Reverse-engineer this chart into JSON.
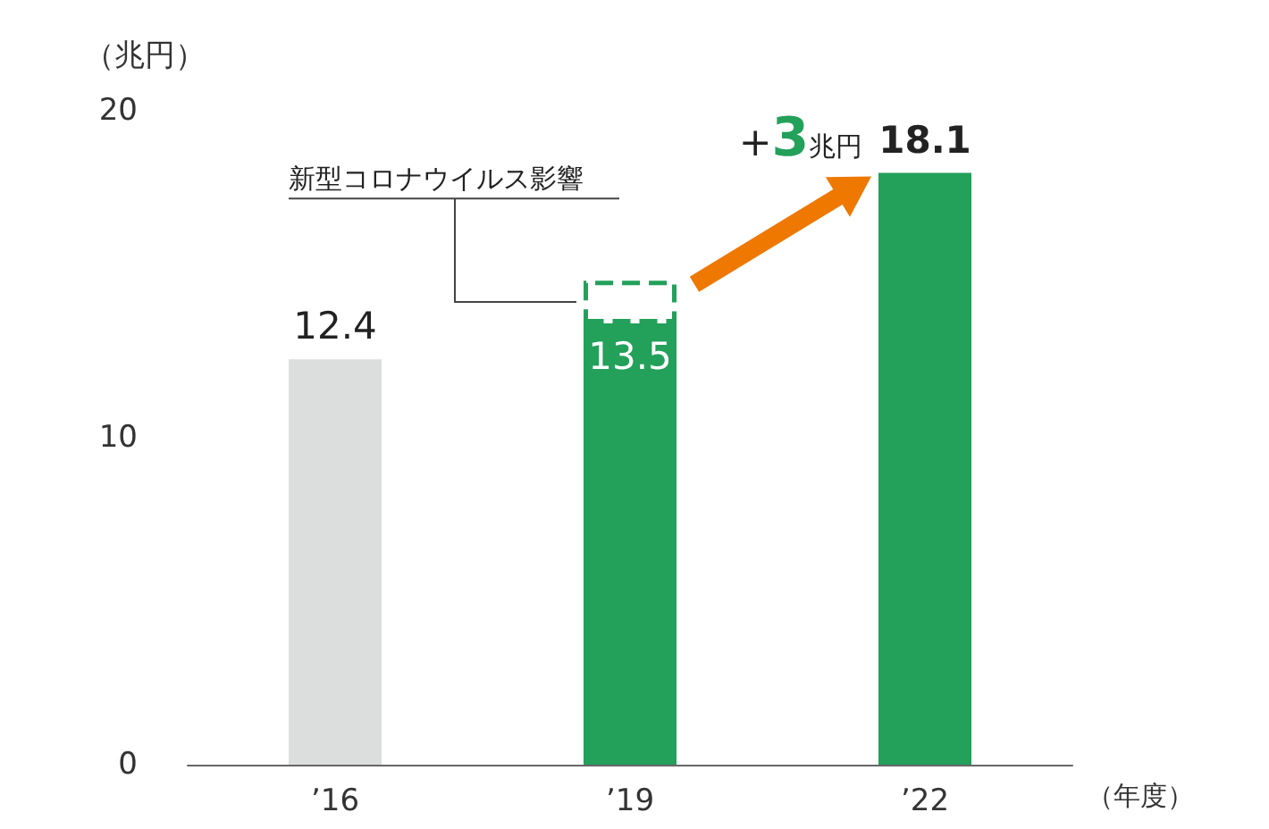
{
  "chart_data": {
    "type": "bar",
    "stacked": true,
    "categories": [
      "’16",
      "’19",
      "’22"
    ],
    "series": [
      {
        "colors": [
          "#dcdddd",
          "#23a05a",
          "#23a05a"
        ],
        "values": [
          12.4,
          13.5,
          18.1
        ],
        "value_labels": [
          "12.4",
          "13.5",
          "18.1"
        ]
      },
      {
        "color": "#23a05a",
        "line_style": "dashed",
        "values": [
          null,
          1.3,
          null
        ]
      }
    ],
    "ylim": [
      0,
      20
    ],
    "yticks": [
      0,
      10,
      20
    ],
    "ylabel": "（兆円）",
    "xlabel": "（年度）",
    "grid": false,
    "annotations": [
      "新型コロナウイルス影響",
      "+3兆円"
    ]
  }
}
